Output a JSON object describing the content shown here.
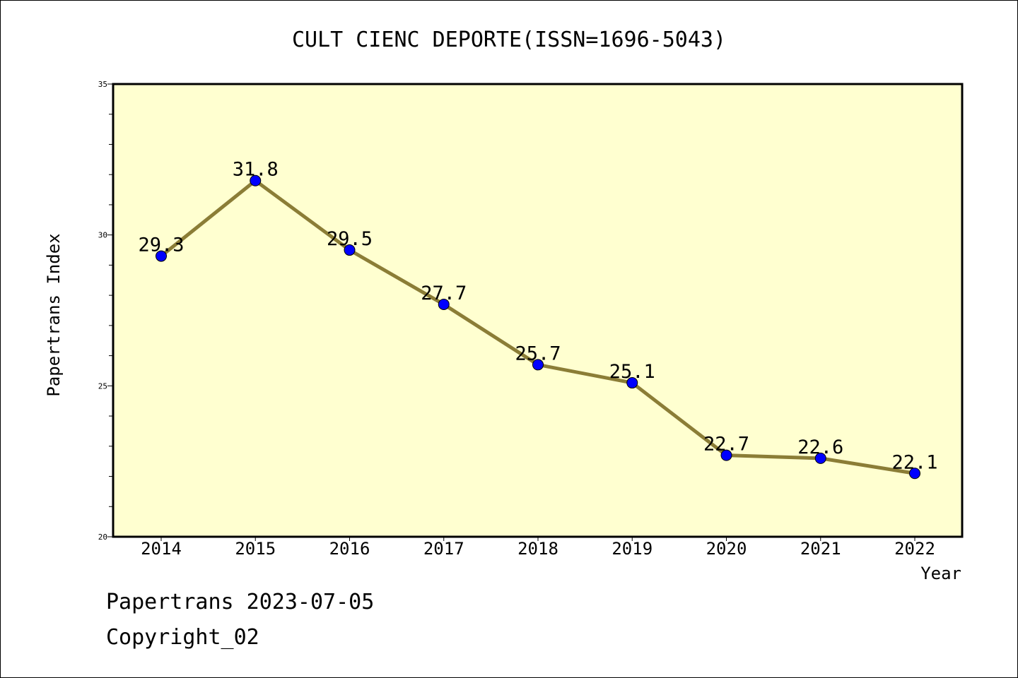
{
  "chart_data": {
    "type": "line",
    "title": "CULT CIENC DEPORTE(ISSN=1696-5043)",
    "xlabel": "Year",
    "ylabel": "Papertrans Index",
    "categories": [
      "2014",
      "2015",
      "2016",
      "2017",
      "2018",
      "2019",
      "2020",
      "2021",
      "2022"
    ],
    "values": [
      29.3,
      31.8,
      29.5,
      27.7,
      25.7,
      25.1,
      22.7,
      22.6,
      22.1
    ],
    "data_labels": [
      "29.3",
      "31.8",
      "29.5",
      "27.7",
      "25.7",
      "25.1",
      "22.7",
      "22.6",
      "22.1"
    ],
    "ylim": [
      20,
      35
    ],
    "yticks": [
      20,
      25,
      30,
      35
    ],
    "grid": false,
    "colors": {
      "plot_background": "#ffffd0",
      "line": "#8b7d36",
      "marker": "#0000ff"
    }
  },
  "footer": {
    "line1": "Papertrans 2023-07-05",
    "line2": "Copyright_02"
  }
}
